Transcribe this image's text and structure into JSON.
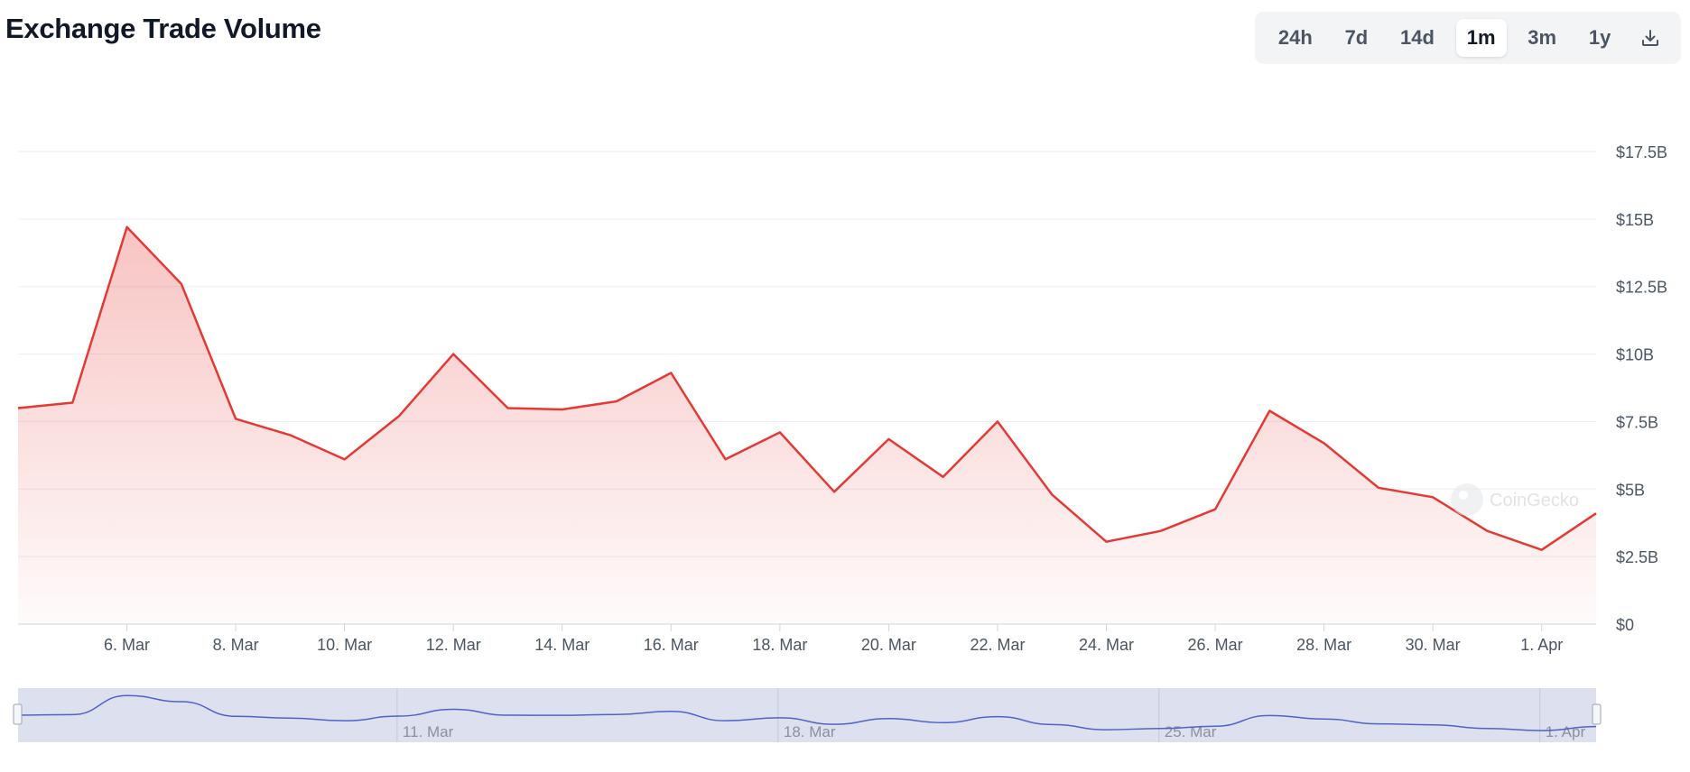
{
  "title": "Exchange Trade Volume",
  "ranges": [
    {
      "label": "24h",
      "active": false
    },
    {
      "label": "7d",
      "active": false
    },
    {
      "label": "14d",
      "active": false
    },
    {
      "label": "1m",
      "active": true
    },
    {
      "label": "3m",
      "active": false
    },
    {
      "label": "1y",
      "active": false
    }
  ],
  "download_icon": "download-icon",
  "watermark": "CoinGecko",
  "colors": {
    "line": "#e53935",
    "navigator_line": "#4f63c6",
    "navigator_bg": "#dde1ef"
  },
  "chart_data": {
    "type": "area",
    "title": "Exchange Trade Volume",
    "ylim": [
      0,
      17.5
    ],
    "yunit": "B USD",
    "y_ticks": [
      0,
      2.5,
      5,
      7.5,
      10,
      12.5,
      15,
      17.5
    ],
    "y_tick_labels": [
      "$0",
      "$2.5B",
      "$5B",
      "$7.5B",
      "$10B",
      "$12.5B",
      "$15B",
      "$17.5B"
    ],
    "x_tick_labels": [
      "6. Mar",
      "8. Mar",
      "10. Mar",
      "12. Mar",
      "14. Mar",
      "16. Mar",
      "18. Mar",
      "20. Mar",
      "22. Mar",
      "24. Mar",
      "26. Mar",
      "28. Mar",
      "30. Mar",
      "1. Apr"
    ],
    "grid": true,
    "series": [
      {
        "x": [
          "4. Mar",
          "5. Mar",
          "6. Mar",
          "7. Mar",
          "8. Mar",
          "9. Mar",
          "10. Mar",
          "11. Mar",
          "12. Mar",
          "13. Mar",
          "14. Mar",
          "15. Mar",
          "16. Mar",
          "17. Mar",
          "18. Mar",
          "19. Mar",
          "20. Mar",
          "21. Mar",
          "22. Mar",
          "23. Mar",
          "24. Mar",
          "25. Mar",
          "26. Mar",
          "27. Mar",
          "28. Mar",
          "29. Mar",
          "30. Mar",
          "31. Mar",
          "1. Apr",
          "2. Apr"
        ],
        "values": [
          8.0,
          8.2,
          14.7,
          12.6,
          7.6,
          7.0,
          6.1,
          7.7,
          10.0,
          8.0,
          7.95,
          8.25,
          9.3,
          6.1,
          7.1,
          4.9,
          6.85,
          5.45,
          7.5,
          4.8,
          3.05,
          3.45,
          4.25,
          7.9,
          6.7,
          5.05,
          4.7,
          3.45,
          2.75,
          4.1
        ]
      }
    ],
    "navigator": {
      "x_tick_labels": [
        "11. Mar",
        "18. Mar",
        "25. Mar",
        "1. Apr"
      ]
    }
  }
}
